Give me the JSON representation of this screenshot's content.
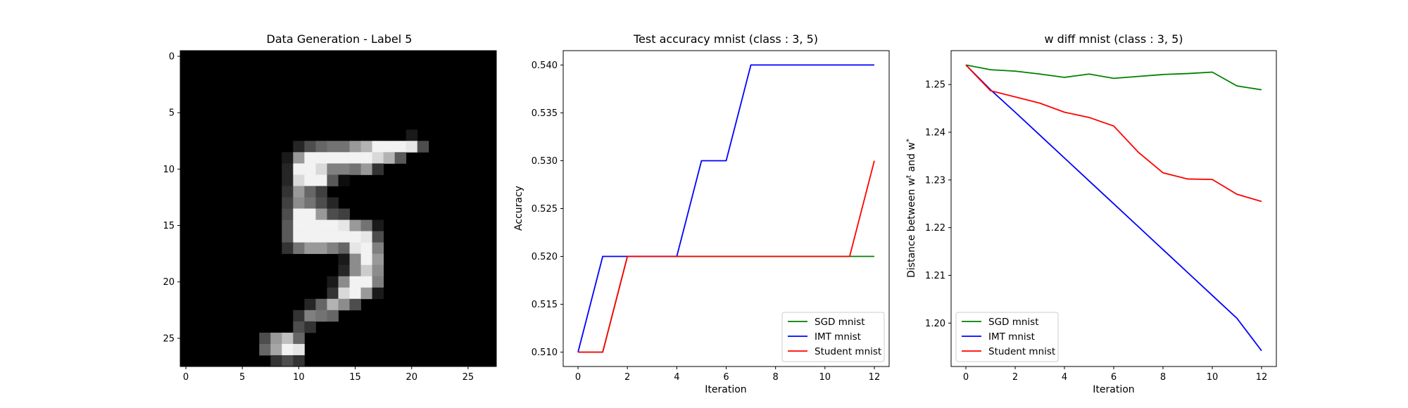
{
  "chart_data": [
    {
      "type": "heatmap",
      "title": "Data Generation - Label 5",
      "colormap": "gray",
      "xticks": [
        0,
        5,
        10,
        15,
        20,
        25
      ],
      "yticks": [
        0,
        5,
        10,
        15,
        20,
        25
      ],
      "size": [
        28,
        28
      ],
      "pixels": [
        {
          "row": 7,
          "col": 20,
          "v": 0.1
        },
        {
          "row": 8,
          "col": 10,
          "v": 0.15
        },
        {
          "row": 8,
          "col": 11,
          "v": 0.3
        },
        {
          "row": 8,
          "col": 12,
          "v": 0.4
        },
        {
          "row": 8,
          "col": 13,
          "v": 0.45
        },
        {
          "row": 8,
          "col": 14,
          "v": 0.45
        },
        {
          "row": 8,
          "col": 15,
          "v": 0.6
        },
        {
          "row": 8,
          "col": 16,
          "v": 0.7
        },
        {
          "row": 8,
          "col": 17,
          "v": 0.95
        },
        {
          "row": 8,
          "col": 18,
          "v": 0.95
        },
        {
          "row": 8,
          "col": 19,
          "v": 0.95
        },
        {
          "row": 8,
          "col": 20,
          "v": 0.9
        },
        {
          "row": 8,
          "col": 21,
          "v": 0.3
        },
        {
          "row": 9,
          "col": 9,
          "v": 0.1
        },
        {
          "row": 9,
          "col": 10,
          "v": 0.6
        },
        {
          "row": 9,
          "col": 11,
          "v": 0.95
        },
        {
          "row": 9,
          "col": 12,
          "v": 0.95
        },
        {
          "row": 9,
          "col": 13,
          "v": 0.95
        },
        {
          "row": 9,
          "col": 14,
          "v": 0.95
        },
        {
          "row": 9,
          "col": 15,
          "v": 0.95
        },
        {
          "row": 9,
          "col": 16,
          "v": 0.95
        },
        {
          "row": 9,
          "col": 17,
          "v": 0.85
        },
        {
          "row": 9,
          "col": 18,
          "v": 0.7
        },
        {
          "row": 9,
          "col": 19,
          "v": 0.35
        },
        {
          "row": 10,
          "col": 9,
          "v": 0.15
        },
        {
          "row": 10,
          "col": 10,
          "v": 0.95
        },
        {
          "row": 10,
          "col": 11,
          "v": 0.95
        },
        {
          "row": 10,
          "col": 12,
          "v": 0.85
        },
        {
          "row": 10,
          "col": 13,
          "v": 0.5
        },
        {
          "row": 10,
          "col": 14,
          "v": 0.5
        },
        {
          "row": 10,
          "col": 15,
          "v": 0.45
        },
        {
          "row": 10,
          "col": 16,
          "v": 0.6
        },
        {
          "row": 10,
          "col": 17,
          "v": 0.2
        },
        {
          "row": 11,
          "col": 9,
          "v": 0.15
        },
        {
          "row": 11,
          "col": 10,
          "v": 0.85
        },
        {
          "row": 11,
          "col": 11,
          "v": 0.95
        },
        {
          "row": 11,
          "col": 12,
          "v": 0.95
        },
        {
          "row": 11,
          "col": 13,
          "v": 0.35
        },
        {
          "row": 11,
          "col": 14,
          "v": 0.05
        },
        {
          "row": 12,
          "col": 9,
          "v": 0.2
        },
        {
          "row": 12,
          "col": 10,
          "v": 0.6
        },
        {
          "row": 12,
          "col": 11,
          "v": 0.4
        },
        {
          "row": 12,
          "col": 12,
          "v": 0.25
        },
        {
          "row": 13,
          "col": 9,
          "v": 0.25
        },
        {
          "row": 13,
          "col": 10,
          "v": 0.55
        },
        {
          "row": 13,
          "col": 11,
          "v": 0.45
        },
        {
          "row": 13,
          "col": 12,
          "v": 0.3
        },
        {
          "row": 13,
          "col": 13,
          "v": 0.15
        },
        {
          "row": 14,
          "col": 9,
          "v": 0.3
        },
        {
          "row": 14,
          "col": 10,
          "v": 0.95
        },
        {
          "row": 14,
          "col": 11,
          "v": 0.95
        },
        {
          "row": 14,
          "col": 12,
          "v": 0.6
        },
        {
          "row": 14,
          "col": 13,
          "v": 0.3
        },
        {
          "row": 14,
          "col": 14,
          "v": 0.25
        },
        {
          "row": 15,
          "col": 9,
          "v": 0.35
        },
        {
          "row": 15,
          "col": 10,
          "v": 0.95
        },
        {
          "row": 15,
          "col": 11,
          "v": 0.95
        },
        {
          "row": 15,
          "col": 12,
          "v": 0.95
        },
        {
          "row": 15,
          "col": 13,
          "v": 0.95
        },
        {
          "row": 15,
          "col": 14,
          "v": 0.9
        },
        {
          "row": 15,
          "col": 15,
          "v": 0.6
        },
        {
          "row": 15,
          "col": 16,
          "v": 0.45
        },
        {
          "row": 15,
          "col": 17,
          "v": 0.1
        },
        {
          "row": 16,
          "col": 9,
          "v": 0.35
        },
        {
          "row": 16,
          "col": 10,
          "v": 0.95
        },
        {
          "row": 16,
          "col": 11,
          "v": 0.95
        },
        {
          "row": 16,
          "col": 12,
          "v": 0.95
        },
        {
          "row": 16,
          "col": 13,
          "v": 0.95
        },
        {
          "row": 16,
          "col": 14,
          "v": 0.95
        },
        {
          "row": 16,
          "col": 15,
          "v": 0.95
        },
        {
          "row": 16,
          "col": 16,
          "v": 0.9
        },
        {
          "row": 16,
          "col": 17,
          "v": 0.3
        },
        {
          "row": 17,
          "col": 9,
          "v": 0.2
        },
        {
          "row": 17,
          "col": 10,
          "v": 0.45
        },
        {
          "row": 17,
          "col": 11,
          "v": 0.6
        },
        {
          "row": 17,
          "col": 12,
          "v": 0.6
        },
        {
          "row": 17,
          "col": 13,
          "v": 0.5
        },
        {
          "row": 17,
          "col": 14,
          "v": 0.4
        },
        {
          "row": 17,
          "col": 15,
          "v": 0.9
        },
        {
          "row": 17,
          "col": 16,
          "v": 0.95
        },
        {
          "row": 17,
          "col": 17,
          "v": 0.5
        },
        {
          "row": 18,
          "col": 14,
          "v": 0.1
        },
        {
          "row": 18,
          "col": 15,
          "v": 0.55
        },
        {
          "row": 18,
          "col": 16,
          "v": 0.95
        },
        {
          "row": 18,
          "col": 17,
          "v": 0.6
        },
        {
          "row": 19,
          "col": 14,
          "v": 0.15
        },
        {
          "row": 19,
          "col": 15,
          "v": 0.55
        },
        {
          "row": 19,
          "col": 16,
          "v": 0.8
        },
        {
          "row": 19,
          "col": 17,
          "v": 0.55
        },
        {
          "row": 20,
          "col": 13,
          "v": 0.1
        },
        {
          "row": 20,
          "col": 14,
          "v": 0.55
        },
        {
          "row": 20,
          "col": 15,
          "v": 0.95
        },
        {
          "row": 20,
          "col": 16,
          "v": 0.95
        },
        {
          "row": 20,
          "col": 17,
          "v": 0.5
        },
        {
          "row": 21,
          "col": 13,
          "v": 0.2
        },
        {
          "row": 21,
          "col": 14,
          "v": 0.85
        },
        {
          "row": 21,
          "col": 15,
          "v": 0.95
        },
        {
          "row": 21,
          "col": 16,
          "v": 0.6
        },
        {
          "row": 21,
          "col": 17,
          "v": 0.1
        },
        {
          "row": 22,
          "col": 11,
          "v": 0.15
        },
        {
          "row": 22,
          "col": 12,
          "v": 0.4
        },
        {
          "row": 22,
          "col": 13,
          "v": 0.7
        },
        {
          "row": 22,
          "col": 14,
          "v": 0.55
        },
        {
          "row": 22,
          "col": 15,
          "v": 0.3
        },
        {
          "row": 23,
          "col": 10,
          "v": 0.2
        },
        {
          "row": 23,
          "col": 11,
          "v": 0.5
        },
        {
          "row": 23,
          "col": 12,
          "v": 0.45
        },
        {
          "row": 23,
          "col": 13,
          "v": 0.4
        },
        {
          "row": 24,
          "col": 10,
          "v": 0.3
        },
        {
          "row": 24,
          "col": 11,
          "v": 0.2
        },
        {
          "row": 25,
          "col": 7,
          "v": 0.3
        },
        {
          "row": 25,
          "col": 8,
          "v": 0.6
        },
        {
          "row": 25,
          "col": 9,
          "v": 0.75
        },
        {
          "row": 25,
          "col": 10,
          "v": 0.4
        },
        {
          "row": 26,
          "col": 7,
          "v": 0.4
        },
        {
          "row": 26,
          "col": 8,
          "v": 0.65
        },
        {
          "row": 26,
          "col": 9,
          "v": 0.95
        },
        {
          "row": 26,
          "col": 10,
          "v": 0.9
        },
        {
          "row": 27,
          "col": 8,
          "v": 0.2
        },
        {
          "row": 27,
          "col": 9,
          "v": 0.3
        },
        {
          "row": 27,
          "col": 10,
          "v": 0.2
        }
      ]
    },
    {
      "type": "line",
      "title": "Test accuracy mnist (class : 3, 5)",
      "xlabel": "Iteration",
      "ylabel": "Accuracy",
      "xlim": [
        -0.6,
        12.6
      ],
      "ylim": [
        0.5085,
        0.5415
      ],
      "xticks": [
        0,
        2,
        4,
        6,
        8,
        10,
        12
      ],
      "yticks": [
        "0.510",
        "0.515",
        "0.520",
        "0.525",
        "0.530",
        "0.535",
        "0.540"
      ],
      "legend_loc": "lower right",
      "x": [
        0,
        1,
        2,
        3,
        4,
        5,
        6,
        7,
        8,
        9,
        10,
        11,
        12
      ],
      "series": [
        {
          "name": "SGD mnist",
          "color": "#008000",
          "values": [
            0.51,
            0.51,
            0.52,
            0.52,
            0.52,
            0.52,
            0.52,
            0.52,
            0.52,
            0.52,
            0.52,
            0.52,
            0.52
          ]
        },
        {
          "name": "IMT mnist",
          "color": "#0000ff",
          "values": [
            0.51,
            0.52,
            0.52,
            0.52,
            0.52,
            0.53,
            0.53,
            0.54,
            0.54,
            0.54,
            0.54,
            0.54,
            0.54
          ]
        },
        {
          "name": "Student mnist",
          "color": "#ff0000",
          "values": [
            0.51,
            0.51,
            0.52,
            0.52,
            0.52,
            0.52,
            0.52,
            0.52,
            0.52,
            0.52,
            0.52,
            0.52,
            0.53
          ]
        }
      ]
    },
    {
      "type": "line",
      "title": "w diff mnist (class : 3, 5)",
      "xlabel": "Iteration",
      "ylabel": "Distance between w^t and w^*",
      "xlim": [
        -0.6,
        12.6
      ],
      "ylim": [
        1.1909,
        1.2571
      ],
      "xticks": [
        0,
        2,
        4,
        6,
        8,
        10,
        12
      ],
      "yticks": [
        "1.20",
        "1.21",
        "1.22",
        "1.23",
        "1.24",
        "1.25"
      ],
      "legend_loc": "lower left",
      "x": [
        0,
        1,
        2,
        3,
        4,
        5,
        6,
        7,
        8,
        9,
        10,
        11,
        12
      ],
      "series": [
        {
          "name": "SGD mnist",
          "color": "#008000",
          "values": [
            1.2541,
            1.2531,
            1.2528,
            1.2522,
            1.2515,
            1.2522,
            1.2513,
            1.2517,
            1.2521,
            1.2523,
            1.2526,
            1.2497,
            1.2489
          ]
        },
        {
          "name": "IMT mnist",
          "color": "#0000ff",
          "values": [
            1.2541,
            1.2489,
            1.2442,
            1.2394,
            1.2346,
            1.2298,
            1.225,
            1.2202,
            1.2154,
            1.2106,
            1.2058,
            1.201,
            1.1942
          ]
        },
        {
          "name": "Student mnist",
          "color": "#ff0000",
          "values": [
            1.2541,
            1.2487,
            1.2474,
            1.2461,
            1.2442,
            1.2431,
            1.2413,
            1.2358,
            1.2315,
            1.2302,
            1.2301,
            1.227,
            1.2255
          ]
        }
      ]
    }
  ]
}
